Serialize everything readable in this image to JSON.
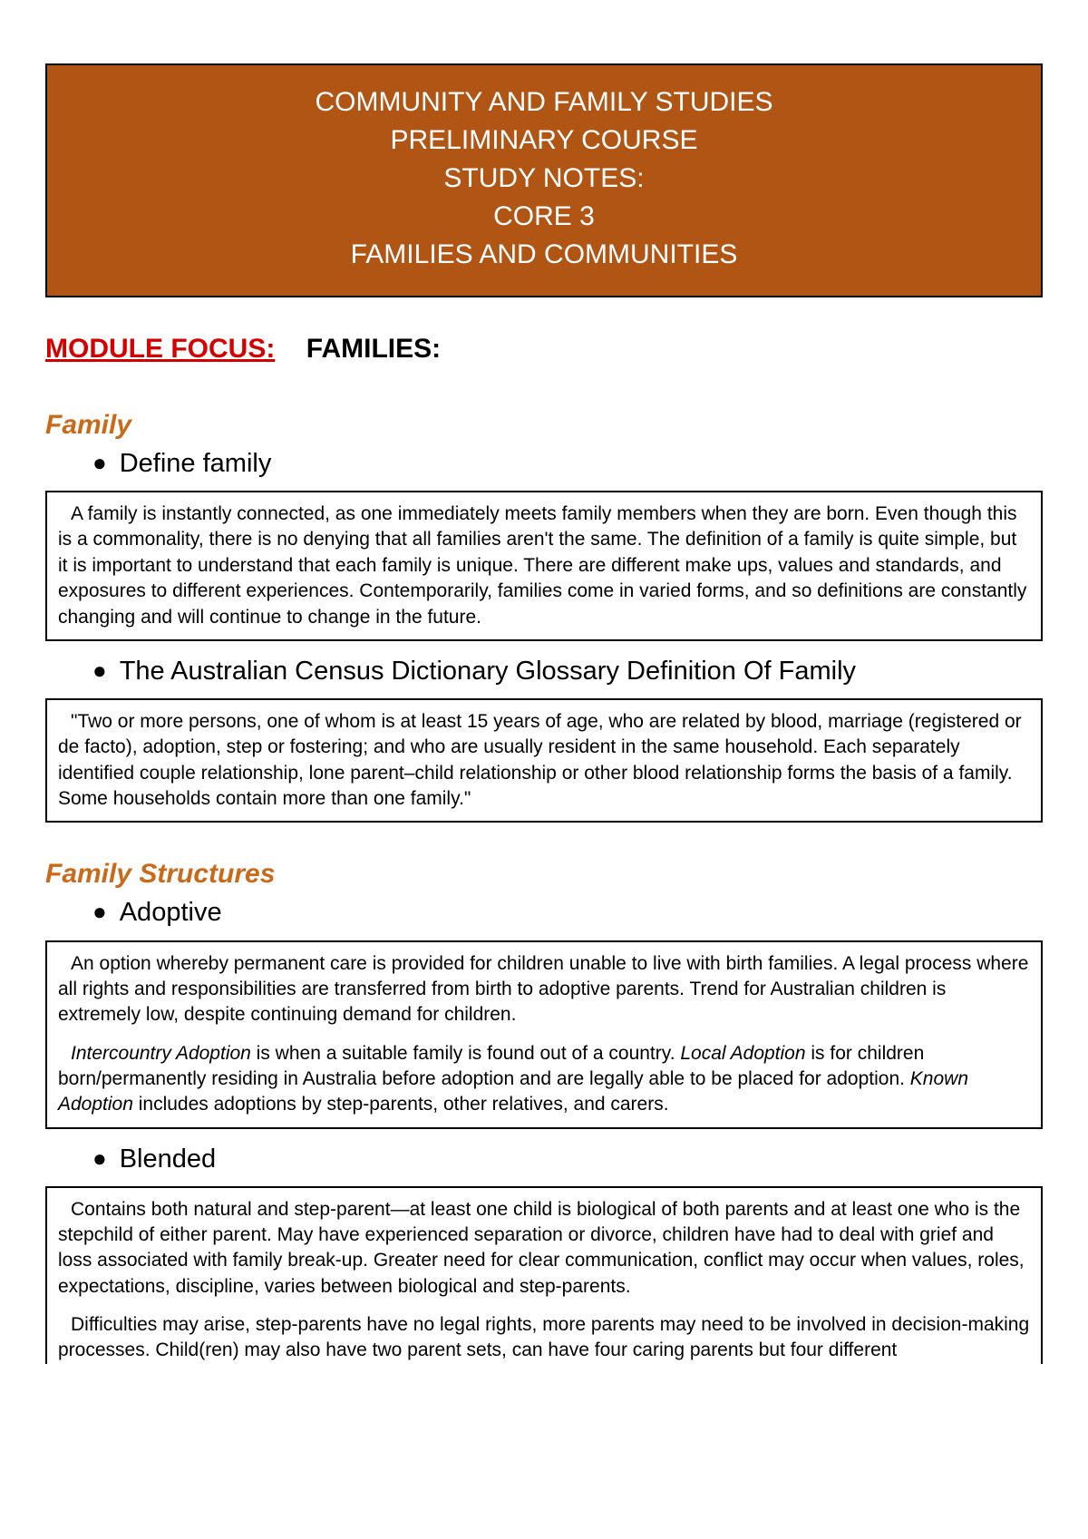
{
  "header": {
    "line1": "COMMUNITY AND FAMILY STUDIES",
    "line2": "PRELIMINARY COURSE",
    "line3": "STUDY NOTES:",
    "line4": "CORE 3",
    "line5": "FAMILIES AND COMMUNITIES"
  },
  "moduleFocus": {
    "label": "MODULE FOCUS:",
    "value": "FAMILIES:"
  },
  "section1": {
    "heading": "Family",
    "bullet1": "Define family",
    "box1": "A family is instantly connected, as one immediately meets family members when they are born. Even though this is a commonality, there is no denying that all families aren't the same. The definition of a family is quite simple, but it is important to understand that each family is unique. There are different make ups, values and standards, and exposures to different experiences. Contemporarily, families come in varied forms, and so definitions are constantly changing and will continue to change in the future.",
    "bullet2": "The Australian Census Dictionary Glossary Definition Of Family",
    "box2": "\"Two or more persons, one of whom is at least 15 years of age, who are related by blood, marriage (registered or de facto), adoption, step or fostering; and who are usually resident in the same household. Each separately identified couple relationship, lone parent–child relationship or other blood relationship forms the basis of a family. Some households contain more than one family.\""
  },
  "section2": {
    "heading": "Family Structures",
    "bullet1": "Adoptive",
    "box1p1": "An option whereby permanent care is provided for children unable to live with birth families. A legal process where all rights and responsibilities are transferred from birth to adoptive parents. Trend for Australian children is extremely low, despite continuing demand for children.",
    "box1p2a": "Intercountry Adoption",
    "box1p2b": " is when a suitable family is found out of a country. ",
    "box1p2c": "Local Adoption",
    "box1p2d": " is for children born/permanently residing in Australia before adoption and are legally able to be placed for adoption. ",
    "box1p2e": "Known Adoption",
    "box1p2f": " includes adoptions by step-parents, other relatives, and carers.",
    "bullet2": "Blended",
    "box2p1": "Contains both natural and step-parent—at least one child is biological of both parents and at least one who is the stepchild of either parent. May have experienced separation or divorce, children have had to deal with grief and loss associated with family break-up. Greater need for clear communication, conflict may occur when values, roles, expectations, discipline, varies between biological and step-parents.",
    "box2p2": "Difficulties may arise, step-parents have no legal rights, more parents may need to be involved in decision-making processes. Child(ren) may also have two parent sets, can have four caring parents but four different"
  }
}
